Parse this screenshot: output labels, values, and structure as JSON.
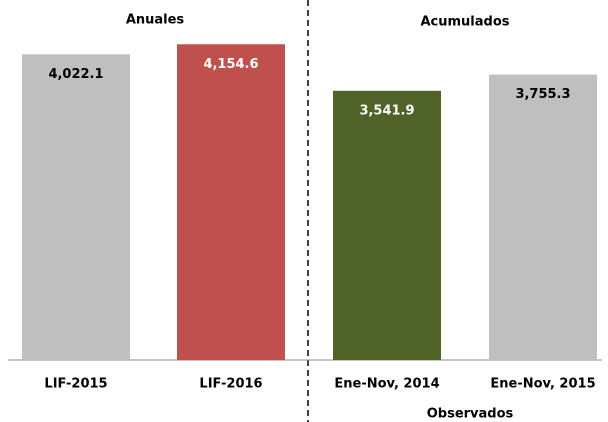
{
  "chart_data": {
    "type": "bar",
    "categories": [
      "LIF-2015",
      "LIF-2016",
      "Ene-Nov, 2014",
      "Ene-Nov, 2015"
    ],
    "values": [
      4022.1,
      4154.6,
      3541.9,
      3755.3
    ],
    "value_labels": [
      "4,022.1",
      "4,154.6",
      "3,541.9",
      "3,755.3"
    ],
    "colors": [
      "#bfbfbf",
      "#c0504d",
      "#4f6228",
      "#bfbfbf"
    ],
    "ylim": [
      0,
      4500
    ],
    "group_labels": [
      "Anuales",
      "Acumulados"
    ],
    "annotation": "Observados"
  }
}
